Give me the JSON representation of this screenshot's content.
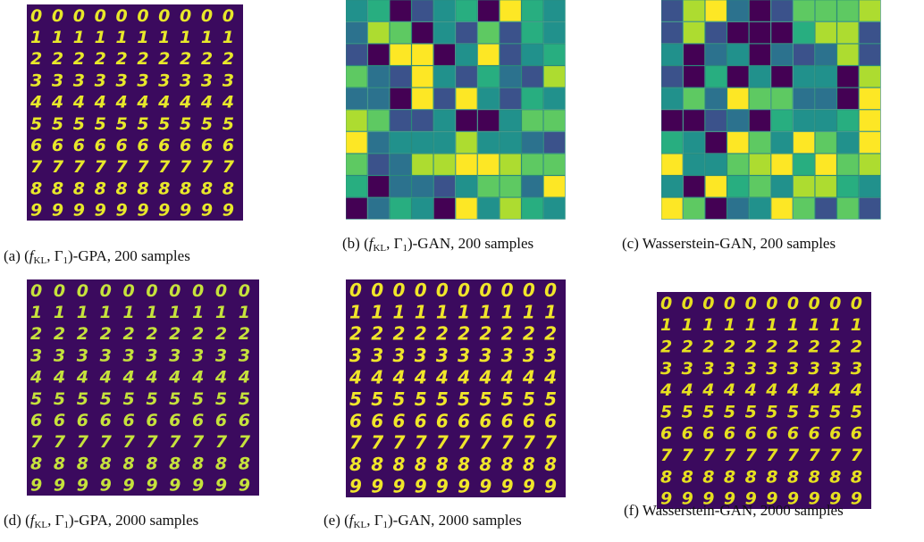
{
  "panels": [
    {
      "kind": "digits",
      "rows": [
        "0000000000",
        "1111111111",
        "2222222222",
        "3333333333",
        "4444444444",
        "5555555555",
        "6666666666",
        "7777777777",
        "8888888888",
        "9999999999"
      ],
      "caption": [
        {
          "t": "(a) ("
        },
        {
          "t": "f",
          "i": true
        },
        {
          "t": "KL",
          "sub": true
        },
        {
          "t": ", Γ"
        },
        {
          "t": "1",
          "sub": true
        },
        {
          "t": ")-GPA, 200 samples"
        }
      ]
    },
    {
      "kind": "tiles",
      "caption": [
        {
          "t": "(b) ("
        },
        {
          "t": "f",
          "i": true
        },
        {
          "t": "KL",
          "sub": true
        },
        {
          "t": ", Γ"
        },
        {
          "t": "1",
          "sub": true
        },
        {
          "t": ")-GAN, 200 samples"
        }
      ]
    },
    {
      "kind": "tiles",
      "caption": [
        {
          "t": "(c) Wasserstein-GAN, 200 samples"
        }
      ]
    },
    {
      "kind": "digits",
      "rows": [
        "0000000000",
        "1111111111",
        "2222222222",
        "3333333333",
        "4444444444",
        "5555555555",
        "6666666666",
        "7777777777",
        "8888888888",
        "9999999999"
      ],
      "caption": [
        {
          "t": "(d) ("
        },
        {
          "t": "f",
          "i": true
        },
        {
          "t": "KL",
          "sub": true
        },
        {
          "t": ", Γ"
        },
        {
          "t": "1",
          "sub": true
        },
        {
          "t": ")-GPA, 2000 samples"
        }
      ]
    },
    {
      "kind": "digits",
      "rows": [
        "0000000000",
        "1111111111",
        "2222222222",
        "3333333333",
        "4444444444",
        "5555555555",
        "6666666666",
        "7777777777",
        "8888888888",
        "9999999999"
      ],
      "caption": [
        {
          "t": "(e) ("
        },
        {
          "t": "f",
          "i": true
        },
        {
          "t": "KL",
          "sub": true
        },
        {
          "t": ", Γ"
        },
        {
          "t": "1",
          "sub": true
        },
        {
          "t": ")-GAN, 2000 samples"
        }
      ]
    },
    {
      "kind": "digits",
      "rows": [
        "0000000000",
        "1111111111",
        "2222222222",
        "3333333333",
        "4444444444",
        "5555555555",
        "6666666666",
        "7777777777",
        "8888888888",
        "9999999999"
      ],
      "caption": [
        {
          "t": "(f) Wasserstein-GAN, 2000 samples"
        }
      ]
    }
  ]
}
